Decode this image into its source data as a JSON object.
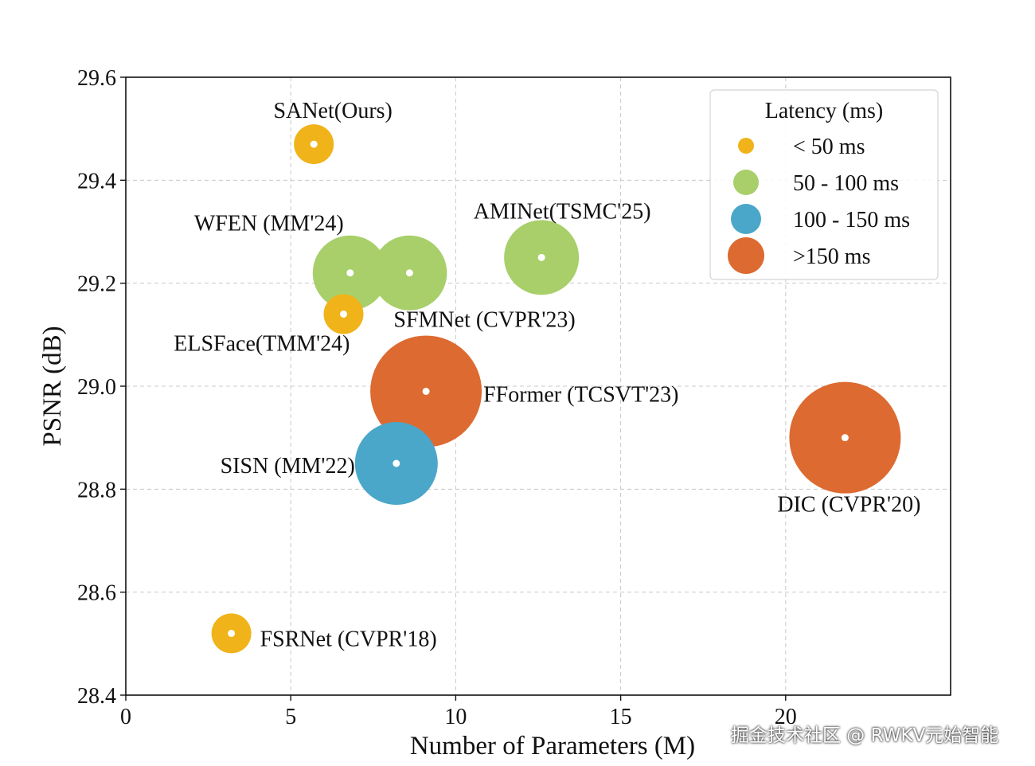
{
  "chart_data": {
    "type": "scatter",
    "xlabel": "Number of Parameters (M)",
    "ylabel": "PSNR (dB)",
    "xlim": [
      0,
      25
    ],
    "ylim": [
      28.4,
      29.6
    ],
    "xticks": [
      0,
      5,
      10,
      15,
      20
    ],
    "yticks": [
      28.4,
      28.6,
      28.8,
      29.0,
      29.2,
      29.4,
      29.6
    ],
    "grid": true,
    "points": [
      {
        "label": "SANet(Ours)",
        "x": 5.7,
        "y": 29.47,
        "latency_class": "< 50 ms",
        "highlight": true
      },
      {
        "label": "WFEN (MM'24)",
        "x": 6.8,
        "y": 29.22,
        "latency_class": "50 - 100 ms"
      },
      {
        "label": "SFMNet (CVPR'23)",
        "x": 8.6,
        "y": 29.22,
        "latency_class": "50 - 100 ms"
      },
      {
        "label": "AMINet(TSMC'25)",
        "x": 12.6,
        "y": 29.25,
        "latency_class": "50 - 100 ms"
      },
      {
        "label": "ELSFace(TMM'24)",
        "x": 6.6,
        "y": 29.14,
        "latency_class": "< 50 ms"
      },
      {
        "label": "FFormer (TCSVT'23)",
        "x": 9.1,
        "y": 28.99,
        "latency_class": ">150 ms"
      },
      {
        "label": "SISN (MM'22)",
        "x": 8.2,
        "y": 28.85,
        "latency_class": "100 - 150 ms"
      },
      {
        "label": "DIC (CVPR'20)",
        "x": 21.8,
        "y": 28.9,
        "latency_class": ">150 ms"
      },
      {
        "label": "FSRNet (CVPR'18)",
        "x": 3.2,
        "y": 28.52,
        "latency_class": "< 50 ms"
      }
    ],
    "legend": {
      "title": "Latency (ms)",
      "placement": "top-right",
      "entries": [
        {
          "label": "< 50 ms",
          "color": "#f0b31a"
        },
        {
          "label": "50 - 100 ms",
          "color": "#a8cf6a"
        },
        {
          "label": "100 - 150 ms",
          "color": "#4aa7c9"
        },
        {
          "label": ">150 ms",
          "color": "#dd6a30"
        }
      ]
    },
    "highlight_color": "#e8141c"
  },
  "watermark": "掘金技术社区 @ RWKV元始智能"
}
